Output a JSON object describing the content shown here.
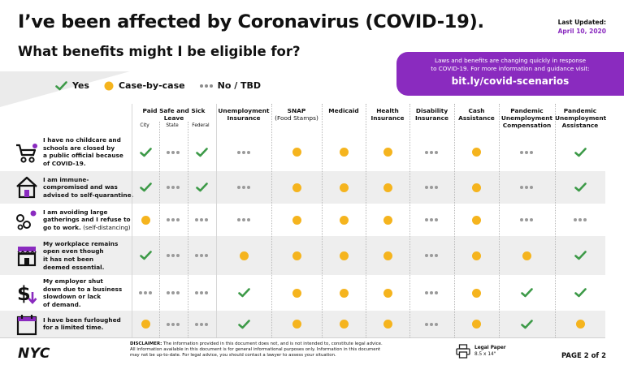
{
  "header": {
    "title": "I’ve been affected by Coronavirus (COVID-19).",
    "subtitle": "What benefits might I be eligible for?",
    "updated_label": "Last Updated:",
    "updated_date": "April 10, 2020"
  },
  "promo": {
    "line1": "Laws and benefits are changing quickly in response",
    "line2": "to COVID-19. For more information and guidance visit:",
    "link": "bit.ly/covid-scenarios"
  },
  "legend": {
    "yes": "Yes",
    "case": "Case-by-case",
    "no": "No / TBD"
  },
  "colors": {
    "accent": "#8a2bbf",
    "check": "#3d9a48",
    "case": "#f5b41e",
    "tbd": "#9a9a9a"
  },
  "columns": {
    "paid_leave": "Paid Safe and Sick Leave",
    "city": "City",
    "state": "State",
    "federal": "Federal",
    "unemployment_1": "Unemployment",
    "unemployment_2": "Insurance",
    "snap_1": "SNAP",
    "snap_2": "(Food Stamps)",
    "medicaid": "Medicaid",
    "health_1": "Health",
    "health_2": "Insurance",
    "disability_1": "Disability",
    "disability_2": "Insurance",
    "cash_1": "Cash",
    "cash_2": "Assistance",
    "puc_1": "Pandemic",
    "puc_2": "Unemployment",
    "puc_3": "Compensation",
    "pua_1": "Pandemic",
    "pua_2": "Unemployment",
    "pua_3": "Assistance"
  },
  "rows": [
    {
      "icon": "stroller-icon",
      "lines": [
        "I have no childcare and",
        "schools are closed by",
        "a public official because",
        "of COVID-19."
      ],
      "note": "",
      "values": [
        "yes",
        "tbd",
        "yes",
        "tbd",
        "case",
        "case",
        "case",
        "tbd",
        "case",
        "tbd",
        "yes"
      ]
    },
    {
      "icon": "house-icon",
      "lines": [
        "I am immune-",
        "compromised and was",
        "advised to self-quarantine."
      ],
      "note": "",
      "values": [
        "yes",
        "tbd",
        "yes",
        "tbd",
        "case",
        "case",
        "case",
        "tbd",
        "case",
        "tbd",
        "yes"
      ]
    },
    {
      "icon": "virus-icon",
      "lines": [
        "I am avoiding large",
        "gatherings and I refuse to",
        "go to work."
      ],
      "note": "(self-distancing)",
      "values": [
        "case",
        "tbd",
        "tbd",
        "tbd",
        "case",
        "case",
        "case",
        "tbd",
        "case",
        "tbd",
        "tbd"
      ]
    },
    {
      "icon": "storefront-icon",
      "lines": [
        "My workplace remains",
        "open even though",
        "it has not been",
        "deemed essential."
      ],
      "note": "",
      "values": [
        "yes",
        "tbd",
        "tbd",
        "case",
        "case",
        "case",
        "case",
        "tbd",
        "case",
        "case",
        "yes"
      ]
    },
    {
      "icon": "dollar-down-icon",
      "lines": [
        "My employer shut",
        "down due to a business",
        "slowdown or lack",
        "of demand."
      ],
      "note": "",
      "values": [
        "tbd",
        "tbd",
        "tbd",
        "yes",
        "case",
        "case",
        "case",
        "tbd",
        "case",
        "yes",
        "yes"
      ]
    },
    {
      "icon": "calendar-icon",
      "lines": [
        "I have been furloughed",
        "for a limited time."
      ],
      "note": "",
      "values": [
        "case",
        "tbd",
        "tbd",
        "yes",
        "case",
        "case",
        "case",
        "tbd",
        "case",
        "yes",
        "case"
      ]
    }
  ],
  "footer": {
    "logo": "NYC",
    "disclaimer_label": "DISCLAIMER:",
    "disclaimer_1": "The information provided in this document does not, and is not intended to, constitute legal advice.",
    "disclaimer_2": "All information available in this document is for general informational purposes only. Information in this document",
    "disclaimer_3": "may not be up-to-date. For legal advice, you should contact a lawyer to assess your situation.",
    "paper_label": "Legal Paper",
    "paper_size": "8.5 x 14\"",
    "page": "PAGE 2 of 2"
  }
}
